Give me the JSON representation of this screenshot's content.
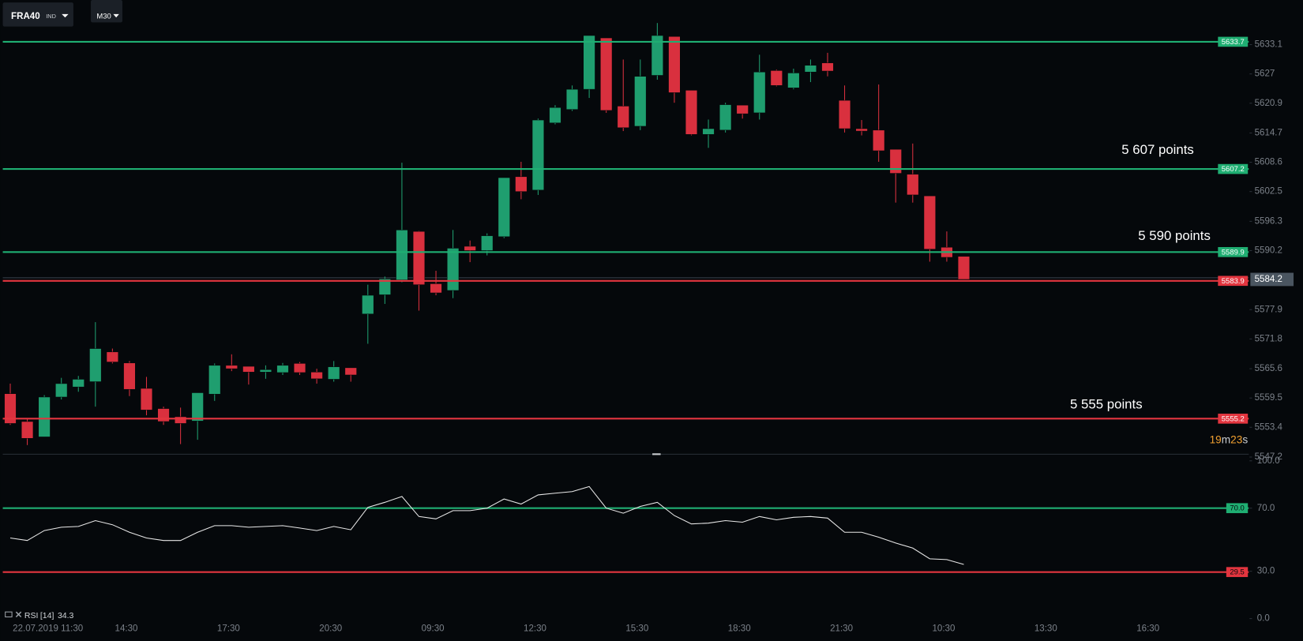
{
  "chart_data": {
    "type": "candlestick",
    "symbol": "FRA40",
    "symbol_type": "IND",
    "timeframe": "M30",
    "categories": [
      "22.07.2019 11:30",
      null,
      null,
      null,
      null,
      null,
      "14:30",
      null,
      null,
      null,
      null,
      null,
      "17:30",
      null,
      null,
      null,
      null,
      null,
      "20:30",
      null,
      null,
      null,
      null,
      null,
      "09:30",
      null,
      null,
      null,
      null,
      null,
      "12:30",
      null,
      null,
      null,
      null,
      null,
      "15:30",
      null,
      null,
      null,
      null,
      null,
      "18:30",
      null,
      null,
      null,
      null,
      null,
      "21:30",
      null,
      null,
      null,
      null,
      null,
      "10:30",
      null,
      null,
      null,
      null,
      null,
      "13:30",
      null,
      null,
      null,
      null,
      null,
      "16:30"
    ],
    "open": [
      5560.4,
      5554.6,
      5551.4,
      5559.7,
      5561.8,
      5562.9,
      5569.1,
      5566.8,
      5561.5,
      5557.3,
      5555.6,
      5554.7,
      5560.3,
      5566.3,
      5566.1,
      5564.9,
      5564.8,
      5566.7,
      5564.9,
      5563.4,
      5565.8,
      5577.0,
      5581.0,
      5584.1,
      5594.2,
      5583.3,
      5581.9,
      5591.1,
      5590.2,
      5593.1,
      5605.6,
      5602.8,
      5616.8,
      5619.6,
      5623.8,
      5634.5,
      5620.3,
      5616.1,
      5626.7,
      5634.8,
      5623.6,
      5614.4,
      5615.3,
      5620.5,
      5618.9,
      5627.7,
      5624.1,
      5627.4,
      5629.3,
      5621.5,
      5615.6,
      5615.3,
      5611.3,
      5606.1,
      5601.6,
      5590.9,
      5589.0,
      null,
      null,
      null,
      null,
      null,
      null,
      null,
      null,
      null,
      null
    ],
    "high": [
      5562.5,
      5555.1,
      5560.1,
      5563.7,
      5564.1,
      5575.3,
      5569.8,
      5567.2,
      5563.9,
      5557.7,
      5557.5,
      5560.6,
      5566.7,
      5568.6,
      5566.1,
      5566.3,
      5566.8,
      5567.0,
      5565.6,
      5567.2,
      5565.8,
      5583.1,
      5584.8,
      5608.5,
      5594.3,
      5586.0,
      5594.5,
      5592.3,
      5593.8,
      5605.4,
      5608.7,
      5617.7,
      5620.5,
      5624.6,
      5635.0,
      5634.5,
      5630.0,
      5630.0,
      5637.6,
      5634.8,
      5623.6,
      5617.5,
      5621.0,
      5620.5,
      5631.0,
      5627.9,
      5628.1,
      5630.0,
      5631.4,
      5624.6,
      5617.4,
      5624.8,
      5611.3,
      5612.5,
      5601.6,
      5594.2,
      5589.0,
      null,
      null,
      null,
      null,
      null,
      null,
      null,
      null,
      null,
      null
    ],
    "low": [
      5553.9,
      5549.7,
      5551.4,
      5559.2,
      5560.8,
      5557.7,
      5566.7,
      5559.9,
      5555.9,
      5553.9,
      5549.9,
      5550.8,
      5558.9,
      5565.1,
      5562.3,
      5563.5,
      5564.3,
      5564.3,
      5562.5,
      5562.9,
      5562.9,
      5570.8,
      5579.1,
      5583.6,
      5577.7,
      5580.9,
      5580.3,
      5587.8,
      5589.2,
      5592.8,
      5600.9,
      5601.8,
      5616.5,
      5619.3,
      5622.0,
      5618.9,
      5615.1,
      5615.3,
      5625.8,
      5621.0,
      5614.2,
      5611.6,
      5614.8,
      5617.7,
      5617.5,
      5624.4,
      5623.8,
      5625.3,
      5626.5,
      5614.8,
      5614.2,
      5608.7,
      5600.2,
      5600.2,
      5587.9,
      5587.9,
      5584.2,
      null,
      null,
      null,
      null,
      null,
      null,
      null,
      null,
      null,
      null
    ],
    "close": [
      5554.2,
      5551.1,
      5559.7,
      5562.5,
      5563.4,
      5569.8,
      5567.0,
      5561.3,
      5557.0,
      5554.6,
      5554.2,
      5560.6,
      5566.3,
      5565.6,
      5564.9,
      5565.4,
      5566.3,
      5564.8,
      5563.5,
      5566.0,
      5564.3,
      5580.9,
      5584.3,
      5594.5,
      5583.1,
      5581.4,
      5590.7,
      5590.2,
      5593.3,
      5605.4,
      5602.5,
      5617.4,
      5620.0,
      5623.8,
      5635.0,
      5619.4,
      5615.8,
      5626.5,
      5635.0,
      5623.1,
      5614.4,
      5615.6,
      5620.6,
      5618.7,
      5627.4,
      5624.6,
      5627.2,
      5628.8,
      5627.6,
      5615.6,
      5615.1,
      5611.0,
      5606.3,
      5601.8,
      5590.5,
      5588.8,
      5584.2,
      null,
      null,
      null,
      null,
      null,
      null,
      null,
      null,
      null,
      null
    ],
    "up_color": "#1f9e6f",
    "down_color": "#d9303e",
    "ylim": [
      5547.8,
      5642.4
    ],
    "yticks": [
      5633.1,
      5627.0,
      5620.9,
      5614.7,
      5608.6,
      5602.5,
      5596.3,
      5590.2,
      5577.9,
      5571.8,
      5565.6,
      5559.5,
      5553.4,
      5547.2
    ],
    "current_price": 5584.2,
    "levels": [
      {
        "value": 5633.7,
        "color": "#1fae72"
      },
      {
        "value": 5607.2,
        "color": "#1fae72"
      },
      {
        "value": 5589.9,
        "color": "#1fae72"
      },
      {
        "value": 5583.9,
        "color": "#e3353f"
      },
      {
        "value": 5555.2,
        "color": "#e3353f"
      }
    ],
    "annotations": [
      "5 607 points",
      "5 590 points",
      "5 555 points"
    ],
    "countdown": {
      "minutes": "19",
      "minutes_unit": "m",
      "seconds": "23",
      "seconds_unit": "s"
    },
    "rsi": {
      "name": "RSI",
      "period_label": "[14]",
      "color": "#e8e8e8",
      "values": [
        51.1,
        49.5,
        55.8,
        57.9,
        58.4,
        62.1,
        59.5,
        54.7,
        51.1,
        49.5,
        49.5,
        54.7,
        58.9,
        58.9,
        57.9,
        58.4,
        58.9,
        57.4,
        55.8,
        58.4,
        56.3,
        70.5,
        73.7,
        77.4,
        64.7,
        63.2,
        68.4,
        68.4,
        70.0,
        75.8,
        72.6,
        78.4,
        79.5,
        80.5,
        83.7,
        70.0,
        66.8,
        71.1,
        73.7,
        65.3,
        60.0,
        60.5,
        62.1,
        61.1,
        64.7,
        62.6,
        64.2,
        64.7,
        63.7,
        54.7,
        54.7,
        51.6,
        47.9,
        44.7,
        37.9,
        37.4,
        34.3,
        null,
        null,
        null,
        null,
        null,
        null,
        null,
        null,
        null,
        null
      ],
      "ylim": [
        0,
        100
      ],
      "yticks": [
        {
          "value": 100,
          "label": "100.0"
        },
        {
          "value": 70,
          "label": "70.0"
        },
        {
          "value": 30,
          "label": "30.0"
        },
        {
          "value": 0,
          "label": "0.0"
        }
      ],
      "levels": [
        {
          "value": 70,
          "label": "70.0",
          "color": "#1fae72"
        },
        {
          "value": 29.5,
          "label": "29.5",
          "color": "#e3353f"
        }
      ]
    }
  }
}
